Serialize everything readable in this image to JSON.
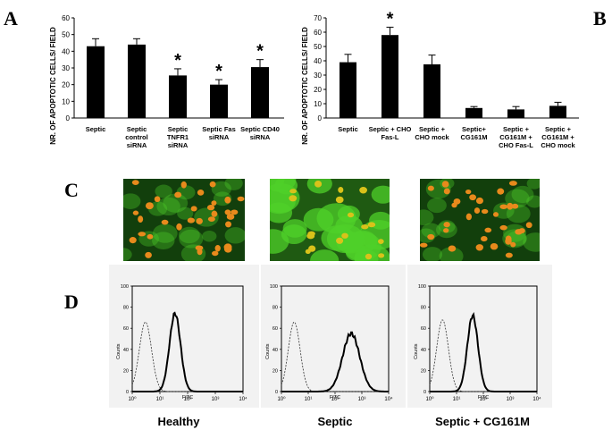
{
  "panels": {
    "A": "A",
    "B": "B",
    "C": "C",
    "D": "D"
  },
  "colors": {
    "bar": "#000000",
    "micro_bg": "#0a3a08",
    "cell_green": "#4fd02a",
    "nucleus": "#e88a1c",
    "flow_bg": "#f2f2f2"
  },
  "chart_data": [
    {
      "type": "bar",
      "panel": "A",
      "ylabel": "NR. OF APOPTOTIC CELLS/ FIELD",
      "ylim": [
        0,
        60
      ],
      "yticks": [
        0,
        10,
        20,
        30,
        40,
        50,
        60
      ],
      "categories": [
        [
          "Septic"
        ],
        [
          "Septic",
          "control",
          "siRNA"
        ],
        [
          "Septic",
          "TNFR1",
          "siRNA"
        ],
        [
          "Septic Fas",
          "siRNA"
        ],
        [
          "Septic CD40",
          "siRNA"
        ]
      ],
      "values": [
        43,
        44,
        25.5,
        20,
        30.5
      ],
      "errors": [
        4.5,
        3.5,
        4,
        3,
        4.5
      ],
      "significant": [
        false,
        false,
        true,
        true,
        true
      ],
      "marker": "*"
    },
    {
      "type": "bar",
      "panel": "B",
      "ylabel": "NR. OF APOPTOTIC CELLS/ FIELD",
      "ylim": [
        0,
        70
      ],
      "yticks": [
        0,
        10,
        20,
        30,
        40,
        50,
        60,
        70
      ],
      "categories": [
        [
          "Septic"
        ],
        [
          "Septic + CHO",
          "Fas-L"
        ],
        [
          "Septic +",
          "CHO mock"
        ],
        [
          "Septic+",
          "CG161M"
        ],
        [
          "Septic +",
          "CG161M +",
          "CHO Fas-L"
        ],
        [
          "Septic +",
          "CG161M +",
          "CHO mock"
        ]
      ],
      "values": [
        39,
        58,
        37.5,
        7,
        6,
        8.5
      ],
      "errors": [
        5.5,
        5.5,
        6.5,
        1,
        2,
        2.5
      ],
      "significant": [
        false,
        true,
        false,
        false,
        false,
        false
      ],
      "marker": "*"
    },
    {
      "type": "line",
      "panel": "D",
      "xlabel": "FITC",
      "ylabel": "Counts",
      "xscale": "log",
      "xlim": [
        1,
        10000
      ],
      "xtick_labels": [
        "10⁰",
        "10¹",
        "10²",
        "10³",
        "10⁴"
      ],
      "ylim": [
        0,
        100
      ],
      "yticks": [
        0,
        20,
        40,
        60,
        80,
        100
      ],
      "plots": [
        {
          "title": "Healthy",
          "control_peak": {
            "x": 3,
            "y": 66
          },
          "sample_peak": {
            "x": 35,
            "y": 74
          }
        },
        {
          "title": "Septic",
          "control_peak": {
            "x": 3,
            "y": 66
          },
          "sample_peak": {
            "x": 400,
            "y": 55
          }
        },
        {
          "title": "Septic + CG161M",
          "control_peak": {
            "x": 3,
            "y": 68
          },
          "sample_peak": {
            "x": 40,
            "y": 72
          }
        }
      ]
    }
  ],
  "micrographs": [
    {
      "condition": "Healthy",
      "green_density": "low"
    },
    {
      "condition": "Septic",
      "green_density": "high"
    },
    {
      "condition": "Septic + CG161M",
      "green_density": "low"
    }
  ]
}
